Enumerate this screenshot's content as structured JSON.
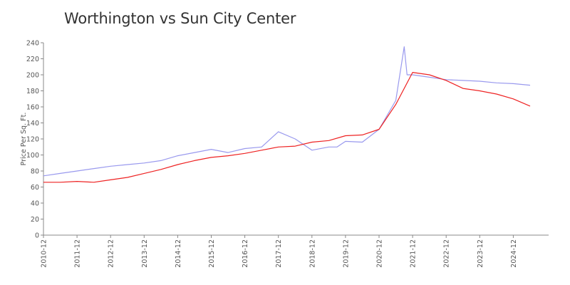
{
  "chart_data": {
    "type": "line",
    "title": "Worthington vs Sun City Center",
    "xlabel": "",
    "ylabel": "Price Per Sq. Ft.",
    "ylim": [
      0,
      240
    ],
    "yticks": [
      "0",
      "20",
      "40",
      "60",
      "80",
      "100",
      "120",
      "140",
      "160",
      "180",
      "200",
      "220",
      "240"
    ],
    "x_tick_labels": [
      "2010-12",
      "2011-12",
      "2012-12",
      "2013-12",
      "2014-12",
      "2015-12",
      "2016-12",
      "2017-12",
      "2018-12",
      "2019-12",
      "2020-12",
      "2021-12",
      "2022-12",
      "2023-12",
      "2024-12"
    ],
    "x": [
      "2010-12",
      "2011-06",
      "2011-12",
      "2012-06",
      "2012-12",
      "2013-06",
      "2013-12",
      "2014-06",
      "2014-12",
      "2015-06",
      "2015-12",
      "2016-06",
      "2016-12",
      "2017-06",
      "2017-12",
      "2018-06",
      "2018-12",
      "2019-06",
      "2019-12",
      "2020-06",
      "2020-12",
      "2021-06",
      "2021-12",
      "2022-06",
      "2022-12",
      "2023-06",
      "2023-12",
      "2024-06",
      "2024-12",
      "2025-06"
    ],
    "series": [
      {
        "color": "#9999ee",
        "values": [
          74,
          77,
          80,
          83,
          86,
          88,
          90,
          93,
          99,
          103,
          107,
          103,
          108,
          110,
          129,
          120,
          106,
          110,
          117,
          116,
          132,
          168,
          200,
          197,
          194,
          193,
          192,
          190,
          189,
          187
        ]
      },
      {
        "color": "#ee2222",
        "values": [
          66,
          66,
          67,
          66,
          69,
          72,
          77,
          82,
          88,
          93,
          97,
          99,
          102,
          106,
          110,
          111,
          116,
          118,
          124,
          125,
          132,
          163,
          203,
          200,
          193,
          183,
          180,
          176,
          170,
          161
        ]
      }
    ],
    "extra_points": [
      {
        "series": 0,
        "x": "2019-09",
        "y": 110
      },
      {
        "series": 0,
        "x": "2021-09",
        "y": 235
      },
      {
        "series": 0,
        "x": "2021-10",
        "y": 200
      }
    ],
    "grid": false,
    "legend": "none"
  }
}
